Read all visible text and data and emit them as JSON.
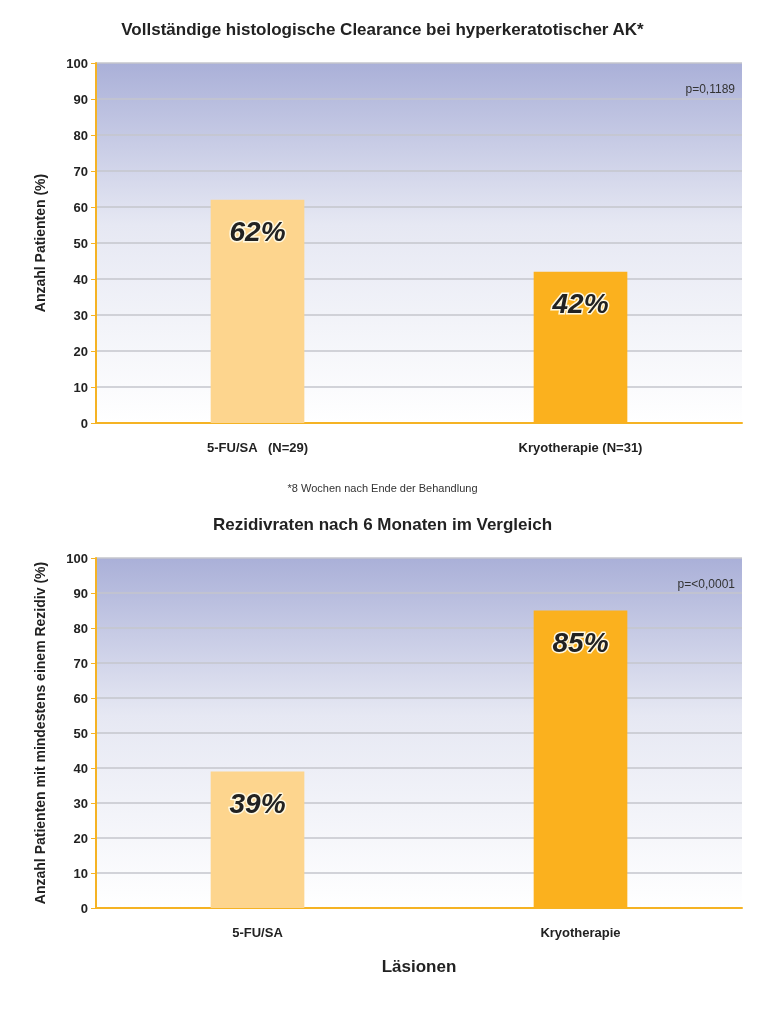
{
  "chart_data": [
    {
      "type": "bar",
      "title": "Vollständige histologische Clearance bei hyperkeratotischer AK*",
      "ylabel": "Anzahl Patienten (%)",
      "categories": [
        "5-FU/SA   (N=29)",
        "Kryotherapie (N=31)"
      ],
      "values": [
        62,
        42
      ],
      "colors": [
        "#fdd58e",
        "#fbb11e"
      ],
      "value_labels": [
        "62%",
        "42%"
      ],
      "ylim": [
        0,
        100
      ],
      "yticks": [
        0,
        10,
        20,
        30,
        40,
        50,
        60,
        70,
        80,
        90,
        100
      ],
      "grid": "y",
      "annotations": [
        "p=0,1189",
        "*8 Wochen nach Ende der Behandlung"
      ]
    },
    {
      "type": "bar",
      "title": "Rezidivraten nach 6 Monaten im Vergleich",
      "ylabel": "Anzahl Patienten mit mindestens einem Rezidiv (%)",
      "xlabel": "Läsionen",
      "categories": [
        "5-FU/SA",
        "Kryotherapie"
      ],
      "values": [
        39,
        85
      ],
      "colors": [
        "#fdd58e",
        "#fbb11e"
      ],
      "value_labels": [
        "39%",
        "85%"
      ],
      "ylim": [
        0,
        100
      ],
      "yticks": [
        0,
        10,
        20,
        30,
        40,
        50,
        60,
        70,
        80,
        90,
        100
      ],
      "grid": "y",
      "annotations": [
        "p=<0,0001"
      ]
    }
  ]
}
